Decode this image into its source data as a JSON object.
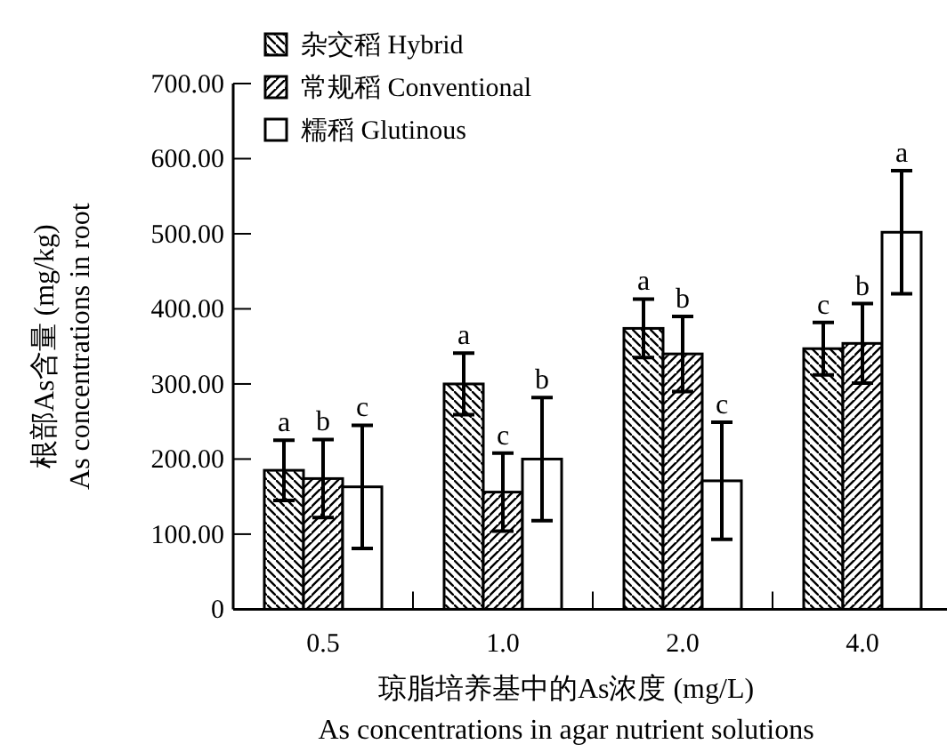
{
  "chart_data": {
    "type": "bar",
    "xlabel": "琼脂培养基中的As浓度 (mg/L)\nAs concentrations in agar nutrient solutions",
    "ylabel": "根部As含量 (mg/kg)\nAs concentrations in root",
    "categories": [
      "0.5",
      "1.0",
      "2.0",
      "4.0"
    ],
    "series": [
      {
        "name": "杂交稻 Hybrid",
        "color": "#000000",
        "values": [
          185,
          300,
          374,
          347
        ],
        "errors": [
          40,
          41,
          39,
          35
        ]
      },
      {
        "name": "常规稻 Conventional",
        "color": "#000000",
        "values": [
          174,
          156,
          340,
          354
        ],
        "errors": [
          52,
          52,
          50,
          53
        ]
      },
      {
        "name": "糯稻 Glutinous",
        "color": "#ffffff",
        "values": [
          163,
          200,
          171,
          502
        ],
        "errors": [
          82,
          82,
          78,
          82
        ]
      }
    ],
    "ylim": [
      0,
      700
    ],
    "yticks": [
      {
        "value": 0,
        "label": "0"
      },
      {
        "value": 100,
        "label": "100.00"
      },
      {
        "value": 200,
        "label": "200.00"
      },
      {
        "value": 300,
        "label": "300.00"
      },
      {
        "value": 400,
        "label": "400.00"
      },
      {
        "value": 500,
        "label": "500.00"
      },
      {
        "value": 600,
        "label": "600.00"
      },
      {
        "value": 700,
        "label": "700.00"
      }
    ],
    "legend": "top left",
    "grid": false,
    "annotations": [
      "a",
      "b",
      "c",
      "a",
      "c",
      "b",
      "a",
      "b",
      "c",
      "c",
      "b",
      "a"
    ]
  }
}
